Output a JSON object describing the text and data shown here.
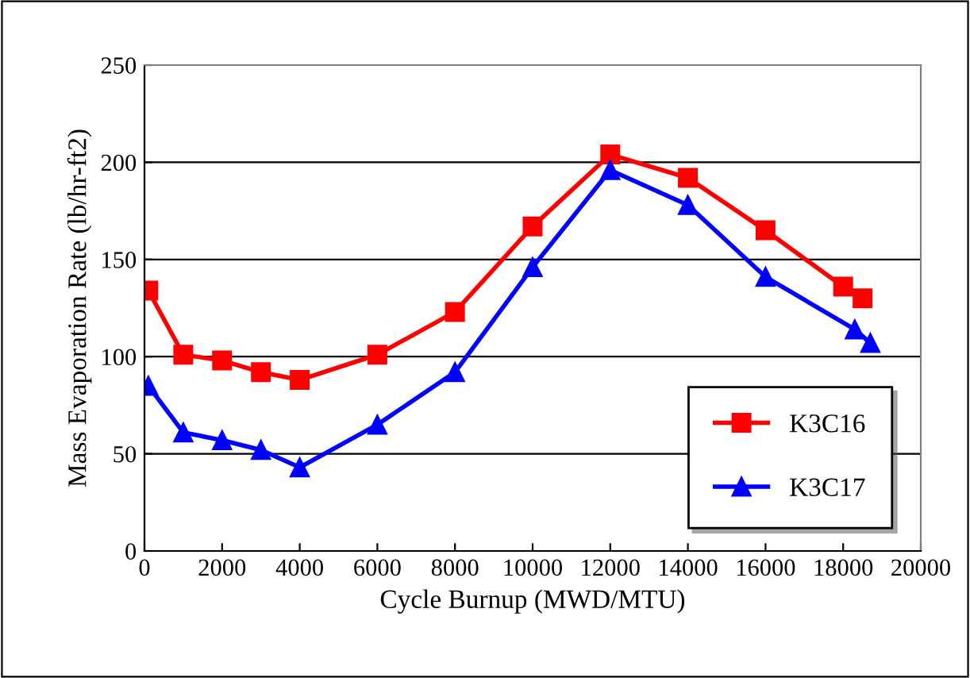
{
  "chart_data": {
    "type": "line",
    "xlabel": "Cycle Burnup (MWD/MTU)",
    "ylabel": "Mass Evaporation Rate (lb/hr-ft2)",
    "xlim": [
      0,
      20000
    ],
    "xticks": [
      0,
      2000,
      4000,
      6000,
      8000,
      10000,
      12000,
      14000,
      16000,
      18000,
      20000
    ],
    "ylim": [
      0,
      250
    ],
    "yticks": [
      0,
      50,
      100,
      150,
      200,
      250
    ],
    "grid": "y",
    "legend": "bottom right",
    "series": [
      {
        "name": "K3C16",
        "color": "#ff0000",
        "marker": "square",
        "x": [
          100,
          1000,
          2000,
          3000,
          4000,
          6000,
          8000,
          10000,
          12000,
          14000,
          16000,
          18000,
          18500
        ],
        "values": [
          134,
          101,
          98,
          92,
          88,
          101,
          123,
          167,
          204,
          192,
          165,
          136,
          130
        ]
      },
      {
        "name": "K3C17",
        "color": "#0000ff",
        "marker": "triangle",
        "x": [
          100,
          1000,
          2000,
          3000,
          4000,
          6000,
          8000,
          10000,
          12000,
          14000,
          16000,
          18300,
          18700
        ],
        "values": [
          85,
          61,
          57,
          52,
          43,
          65,
          92,
          146,
          196,
          178,
          141,
          114,
          107
        ]
      }
    ]
  }
}
